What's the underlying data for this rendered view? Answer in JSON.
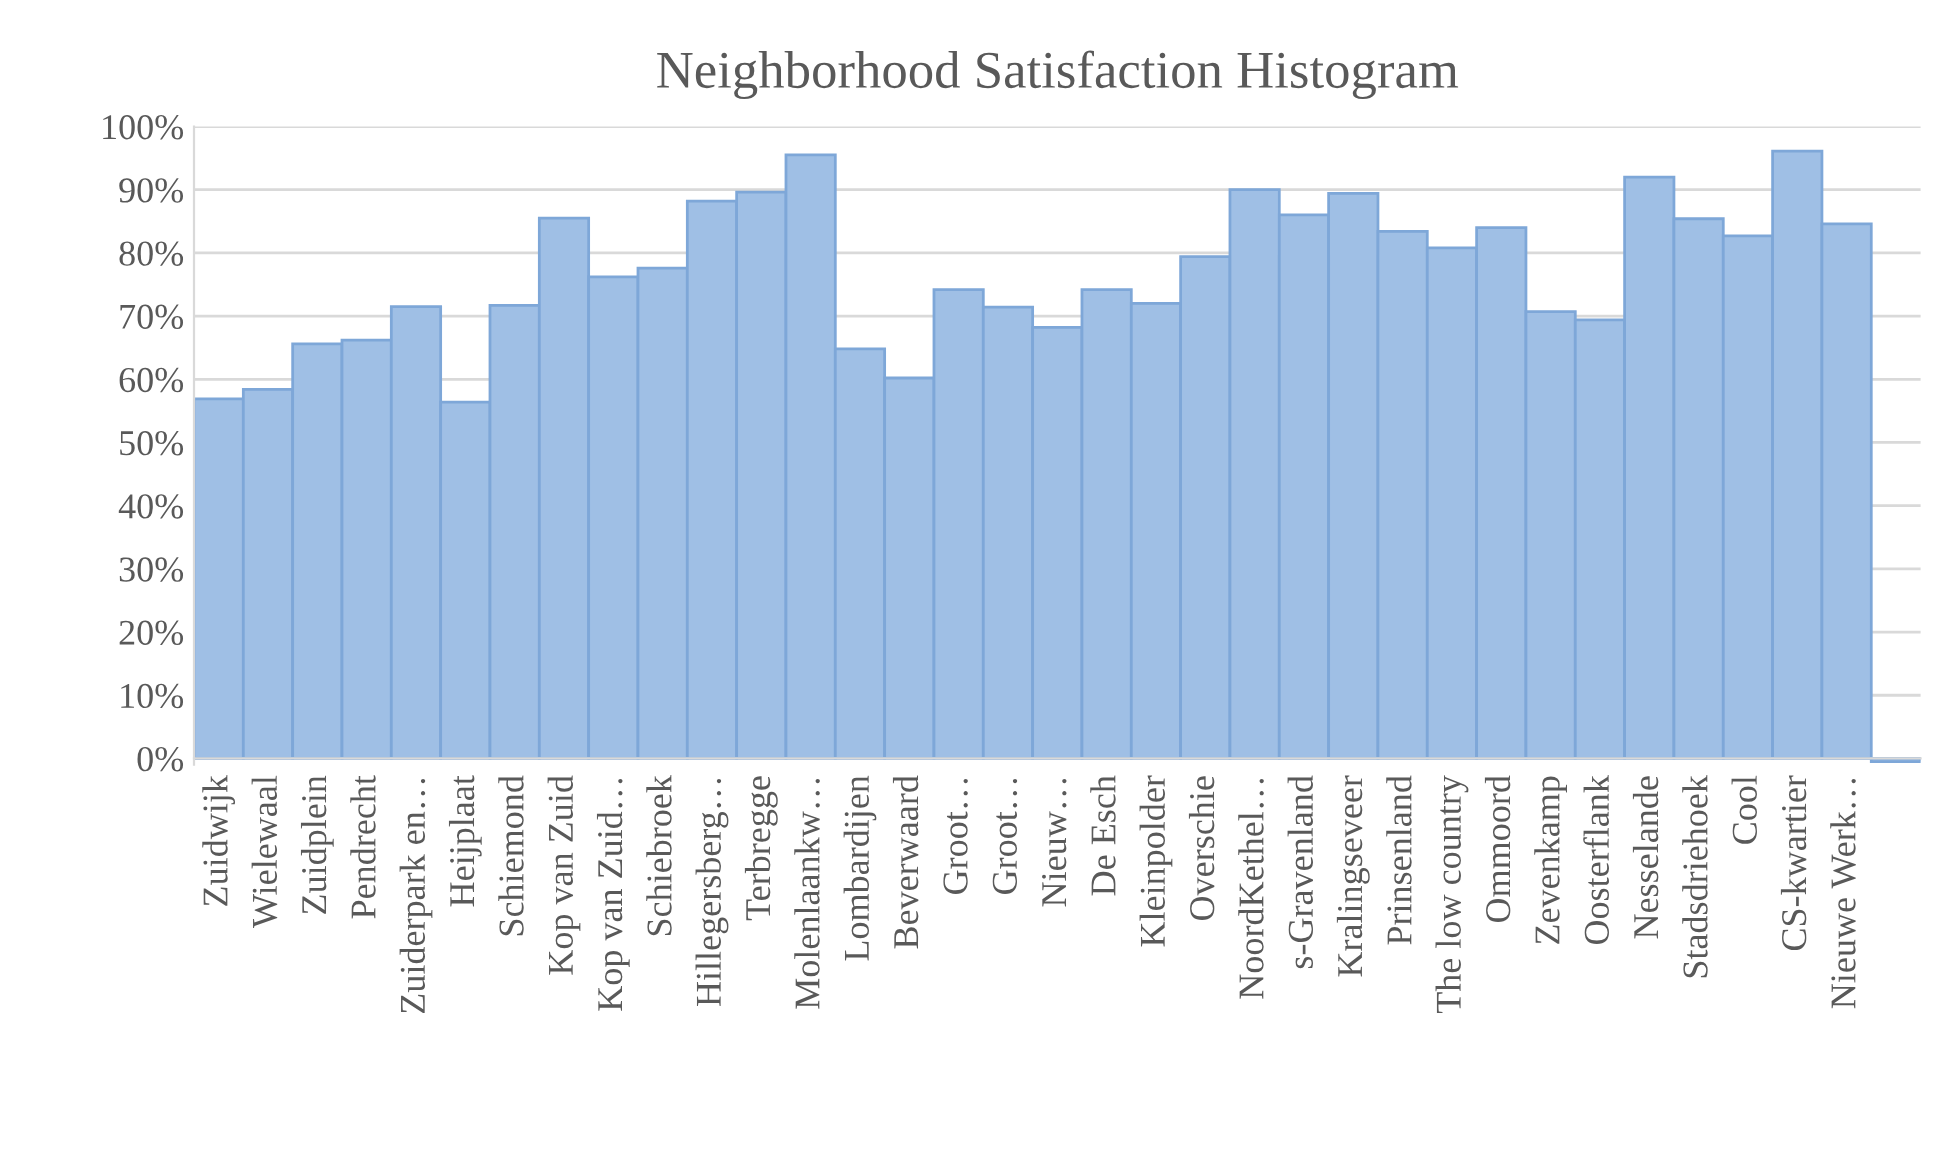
{
  "chart_data": {
    "type": "bar",
    "title": "Neighborhood Satisfaction Histogram",
    "categories": [
      "Zuidwijk",
      "Wielewaal",
      "Zuidplein",
      "Pendrecht",
      "Zuiderpark en…",
      "Heijplaat",
      "Schiemond",
      "Kop van Zuid",
      "Kop van Zuid…",
      "Schiebroek",
      "Hillegersberg…",
      "Terbregge",
      "Molenlaankw…",
      "Lombardijen",
      "Beverwaard",
      "Groot…",
      "Groot…",
      "Nieuw…",
      "De Esch",
      "Kleinpolder",
      "Overschie",
      "NoordKethel…",
      "s-Gravenland",
      "Kralingseveer",
      "Prinsenland",
      "The low country",
      "Ommoord",
      "Zevenkamp",
      "Oosterflank",
      "Nesselande",
      "Stadsdriehoek",
      "Cool",
      "CS-kwartier",
      "Nieuwe Werk…",
      null
    ],
    "values": [
      56.9,
      58.4,
      65.6,
      66.2,
      71.5,
      56.4,
      71.7,
      85.5,
      76.2,
      77.6,
      88.2,
      89.6,
      95.5,
      64.8,
      60.2,
      74.2,
      71.4,
      68.2,
      74.2,
      72,
      79.4,
      90,
      86,
      89.4,
      83.4,
      80.8,
      84,
      70.7,
      69.4,
      92,
      85.4,
      82.7,
      96.1,
      84.6,
      -0.5
    ],
    "color": "#9fbfe5",
    "ylim": [
      -1,
      100
    ],
    "yticks": [
      {
        "value": 0,
        "label": "0%"
      },
      {
        "value": 10,
        "label": "10%"
      },
      {
        "value": 20,
        "label": "20%"
      },
      {
        "value": 30,
        "label": "30%"
      },
      {
        "value": 40,
        "label": "40%"
      },
      {
        "value": 50,
        "label": "50%"
      },
      {
        "value": 60,
        "label": "60%"
      },
      {
        "value": 70,
        "label": "70%"
      },
      {
        "value": 80,
        "label": "80%"
      },
      {
        "value": 90,
        "label": "90%"
      },
      {
        "value": 100,
        "label": "100%"
      }
    ],
    "grid": "y"
  }
}
